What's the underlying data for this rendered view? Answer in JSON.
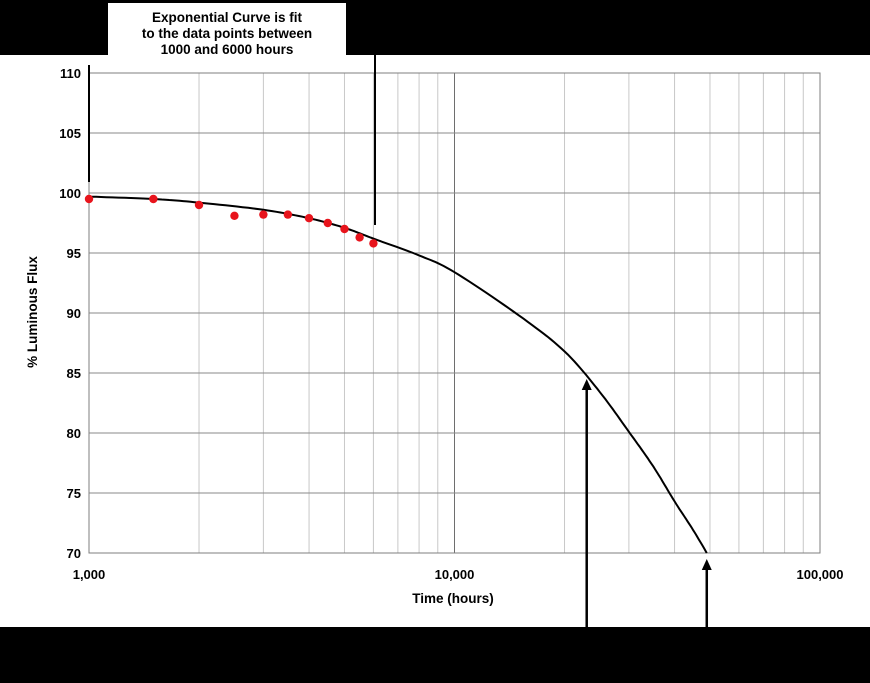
{
  "callout": {
    "lines": [
      "Exponential Curve is fit",
      "to the data points between",
      "1000 and 6000 hours"
    ]
  },
  "chart_data": {
    "type": "scatter",
    "xlabel": "Time (hours)",
    "ylabel": "% Luminous Flux",
    "x_scale": "log",
    "xlim": [
      1000,
      100000
    ],
    "ylim": [
      70,
      110
    ],
    "x_ticks": [
      1000,
      10000,
      100000
    ],
    "x_tick_labels": [
      "1,000",
      "10,000",
      "100,000"
    ],
    "y_ticks": [
      70,
      75,
      80,
      85,
      90,
      95,
      100,
      105,
      110
    ],
    "y_tick_labels": [
      "70",
      "75",
      "80",
      "85",
      "90",
      "95",
      "100",
      "105",
      "110"
    ],
    "grid": true,
    "series": [
      {
        "type": "scatter",
        "color": "#e8141c",
        "x": [
          1000,
          1500,
          2000,
          2500,
          3000,
          3500,
          4000,
          4500,
          5000,
          5500,
          6000
        ],
        "y": [
          99.5,
          99.5,
          99.0,
          98.1,
          98.2,
          98.2,
          97.9,
          97.5,
          97.0,
          96.3,
          95.8
        ]
      },
      {
        "type": "line",
        "color": "#000000",
        "x": [
          1000,
          1500,
          2000,
          3000,
          4000,
          5000,
          6000,
          8000,
          10000,
          15000,
          20000,
          25000,
          30000,
          35000,
          40000,
          45000,
          49000
        ],
        "y": [
          99.7,
          99.5,
          99.2,
          98.6,
          97.9,
          97.1,
          96.2,
          94.8,
          93.4,
          89.8,
          86.8,
          83.4,
          80.1,
          77.2,
          74.3,
          71.9,
          70.0
        ]
      }
    ],
    "annotations": [
      {
        "type": "arrow",
        "x": 23000,
        "y": 85
      },
      {
        "type": "arrow",
        "x": 49000,
        "y": 70
      }
    ]
  }
}
